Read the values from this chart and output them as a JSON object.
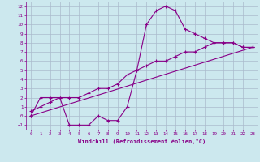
{
  "xlabel": "Windchill (Refroidissement éolien,°C)",
  "bg_color": "#cce8ee",
  "grid_color": "#aabbcc",
  "line_color": "#880088",
  "marker": "+",
  "xlim": [
    -0.5,
    23.5
  ],
  "ylim": [
    -1.5,
    12.5
  ],
  "xticks": [
    0,
    1,
    2,
    3,
    4,
    5,
    6,
    7,
    8,
    9,
    10,
    11,
    12,
    13,
    14,
    15,
    16,
    17,
    18,
    19,
    20,
    21,
    22,
    23
  ],
  "yticks": [
    -1,
    0,
    1,
    2,
    3,
    4,
    5,
    6,
    7,
    8,
    9,
    10,
    11,
    12
  ],
  "series1_x": [
    0,
    1,
    2,
    3,
    4,
    5,
    6,
    7,
    8,
    9,
    10,
    11,
    12,
    13,
    14,
    15,
    16,
    17,
    18,
    19,
    20,
    21,
    22,
    23
  ],
  "series1_y": [
    0,
    2,
    2,
    2,
    -1,
    -1,
    -1,
    0,
    -0.5,
    -0.5,
    1,
    5,
    10,
    11.5,
    12,
    11.5,
    9.5,
    9,
    8.5,
    8,
    8,
    8,
    7.5,
    7.5
  ],
  "series2_x": [
    0,
    1,
    2,
    3,
    4,
    5,
    6,
    7,
    8,
    9,
    10,
    11,
    12,
    13,
    14,
    15,
    16,
    17,
    18,
    19,
    20,
    21,
    22,
    23
  ],
  "series2_y": [
    0.5,
    1.0,
    1.5,
    2.0,
    2.0,
    2.0,
    2.5,
    3.0,
    3.0,
    3.5,
    4.5,
    5.0,
    5.5,
    6.0,
    6.0,
    6.5,
    7.0,
    7.0,
    7.5,
    8.0,
    8.0,
    8.0,
    7.5,
    7.5
  ],
  "series3_x": [
    0,
    23
  ],
  "series3_y": [
    0,
    7.5
  ]
}
